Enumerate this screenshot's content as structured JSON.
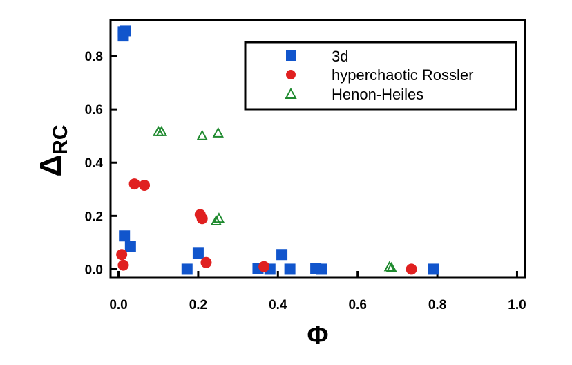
{
  "chart_data": {
    "type": "scatter",
    "xlabel": "Φ",
    "ylabel_main": "Δ",
    "ylabel_sub": "RC",
    "xlim": [
      -0.02,
      1.02
    ],
    "ylim": [
      -0.03,
      0.935
    ],
    "xticks": [
      "0.0",
      "0.2",
      "0.4",
      "0.6",
      "0.8",
      "1.0"
    ],
    "yticks": [
      "0.0",
      "0.2",
      "0.4",
      "0.6",
      "0.8"
    ],
    "legend_position": "top-right",
    "series": [
      {
        "name": "3d",
        "marker": "square",
        "color": "#1155cc",
        "points": [
          [
            0.012,
            0.89
          ],
          [
            0.018,
            0.895
          ],
          [
            0.012,
            0.875
          ],
          [
            0.015,
            0.125
          ],
          [
            0.03,
            0.085
          ],
          [
            0.172,
            0.0
          ],
          [
            0.2,
            0.06
          ],
          [
            0.35,
            0.003
          ],
          [
            0.38,
            0.0
          ],
          [
            0.41,
            0.055
          ],
          [
            0.43,
            0.0
          ],
          [
            0.495,
            0.003
          ],
          [
            0.51,
            0.0
          ],
          [
            0.79,
            0.0
          ]
        ]
      },
      {
        "name": "hyperchaotic Rossler",
        "marker": "circle",
        "color": "#e02020",
        "points": [
          [
            0.04,
            0.32
          ],
          [
            0.065,
            0.315
          ],
          [
            0.205,
            0.205
          ],
          [
            0.21,
            0.19
          ],
          [
            0.008,
            0.055
          ],
          [
            0.012,
            0.015
          ],
          [
            0.22,
            0.025
          ],
          [
            0.365,
            0.01
          ],
          [
            0.735,
            0.0
          ]
        ]
      },
      {
        "name": "Henon-Heiles",
        "marker": "triangle",
        "color": "#1f8a2f",
        "points": [
          [
            0.1,
            0.515
          ],
          [
            0.108,
            0.515
          ],
          [
            0.21,
            0.5
          ],
          [
            0.25,
            0.51
          ],
          [
            0.245,
            0.18
          ],
          [
            0.252,
            0.19
          ],
          [
            0.68,
            0.008
          ],
          [
            0.685,
            0.004
          ]
        ]
      }
    ]
  }
}
